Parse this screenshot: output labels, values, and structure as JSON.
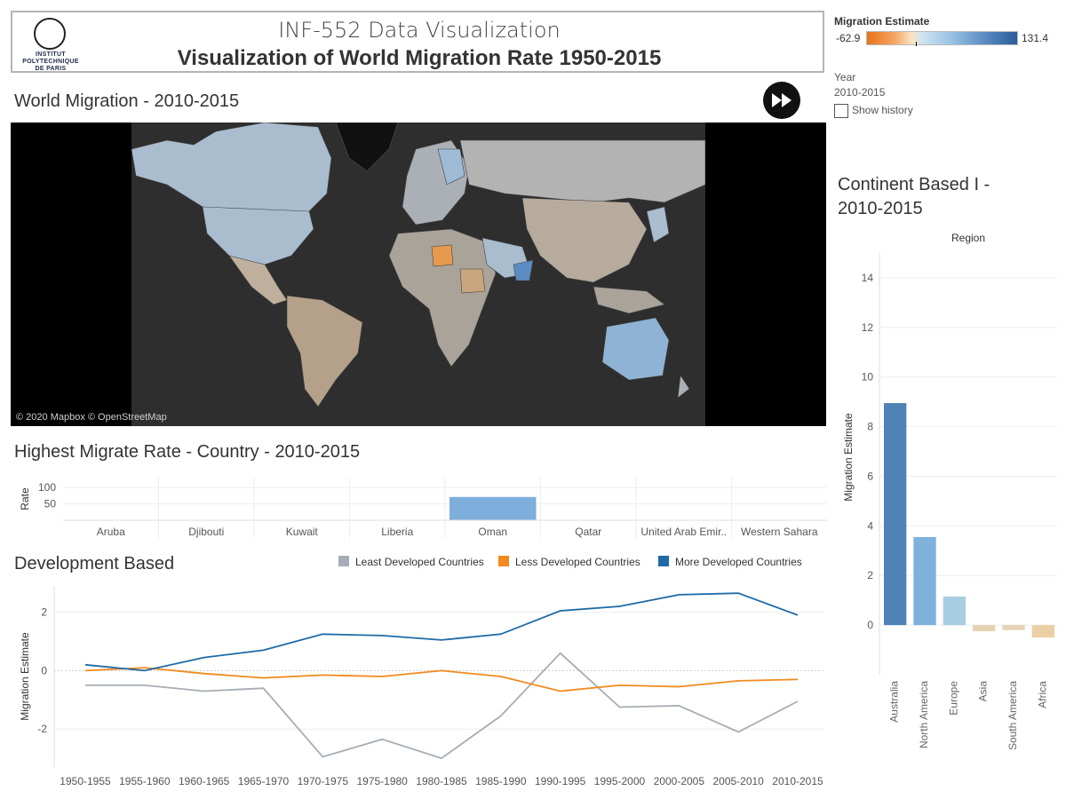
{
  "header": {
    "subtitle": "INF-552 Data Visualization",
    "title": "Visualization of World Migration Rate 1950-2015",
    "logo_text": [
      "INSTITUT",
      "POLYTECHNIQUE",
      "DE PARIS"
    ]
  },
  "legend": {
    "title": "Migration Estimate",
    "min": "-62.9",
    "max": "131.4",
    "low_color": "#e8731c",
    "high_color": "#2a5d9a"
  },
  "year_filter": {
    "label": "Year",
    "value": "2010-2015",
    "show_history_label": "Show history",
    "show_history_checked": false
  },
  "map": {
    "title": "World Migration - 2010-2015",
    "credit": "© 2020 Mapbox © OpenStreetMap",
    "play_icon": "fast-forward-icon"
  },
  "highest_rate": {
    "title": "Highest Migrate Rate - Country - 2010-2015",
    "chart_data": {
      "type": "bar",
      "categories": [
        "Aruba",
        "Djibouti",
        "Kuwait",
        "Liberia",
        "Oman",
        "Qatar",
        "United Arab Emir..",
        "Western Sahara"
      ],
      "values": [
        0,
        0,
        0,
        0,
        71,
        0,
        0,
        0
      ],
      "ylabel": "Rate",
      "yticks": [
        50,
        100
      ],
      "ylim": [
        0,
        130
      ],
      "bar_color": "#7eaedc"
    }
  },
  "development": {
    "title": "Development Based",
    "chart_data": {
      "type": "line",
      "x": [
        "1950-1955",
        "1955-1960",
        "1960-1965",
        "1965-1970",
        "1970-1975",
        "1975-1980",
        "1980-1985",
        "1985-1990",
        "1990-1995",
        "1995-2000",
        "2000-2005",
        "2005-2010",
        "2010-2015"
      ],
      "ylabel": "Migration Estimate",
      "yticks": [
        -2,
        0,
        2
      ],
      "ylim": [
        -3.3,
        2.9
      ],
      "series": [
        {
          "name": "Least Developed Countries",
          "color": "#a6adb5",
          "values": [
            -0.5,
            -0.5,
            -0.7,
            -0.6,
            -2.95,
            -2.35,
            -3.0,
            -1.55,
            0.6,
            -1.25,
            -1.2,
            -2.1,
            -1.05
          ]
        },
        {
          "name": "Less Developed Countries",
          "color": "#f28a1e",
          "values": [
            0.0,
            0.1,
            -0.1,
            -0.25,
            -0.15,
            -0.2,
            0.0,
            -0.2,
            -0.7,
            -0.5,
            -0.55,
            -0.35,
            -0.3
          ]
        },
        {
          "name": "More Developed Countries",
          "color": "#1f6aa5",
          "values": [
            0.2,
            0.0,
            0.45,
            0.7,
            1.25,
            1.2,
            1.05,
            1.25,
            2.05,
            2.2,
            2.6,
            2.65,
            1.9
          ]
        }
      ]
    }
  },
  "continent": {
    "title": "Continent Based I - 2010-2015",
    "chart_data": {
      "type": "bar",
      "title": "Region",
      "categories": [
        "Australia",
        "North America",
        "Europe",
        "Asia",
        "South America",
        "Africa"
      ],
      "values": [
        8.95,
        3.55,
        1.15,
        -0.25,
        -0.2,
        -0.5
      ],
      "colors": [
        "#4f82b5",
        "#7eb2dc",
        "#a8cde3",
        "#e6d2b4",
        "#e6d2b4",
        "#ebcfa5"
      ],
      "ylabel": "Migration Estimate",
      "yticks": [
        0,
        2,
        4,
        6,
        8,
        10,
        12,
        14
      ],
      "ylim": [
        -2,
        15
      ]
    }
  }
}
